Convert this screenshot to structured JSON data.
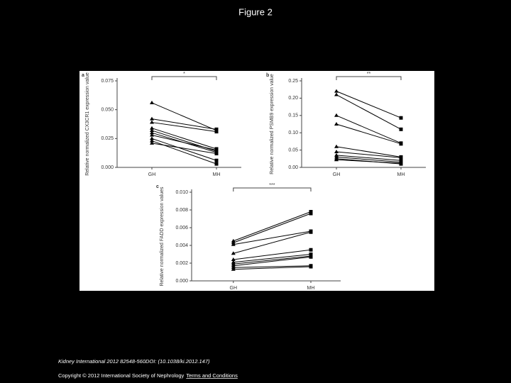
{
  "title": "Figure 2",
  "footer": {
    "citation": "Kidney International 2012 82548-560DOI: (10.1038/ki.2012.147)",
    "copyright": "Copyright © 2012 International Society of Nephrology",
    "link": "Terms and Conditions"
  },
  "chart_data": [
    {
      "type": "line",
      "label": "a",
      "ylabel": "Relative normalized CX3CR1 expression value",
      "annotation": "*",
      "color": "#000000",
      "categories": [
        "GH",
        "MH"
      ],
      "series": [
        {
          "values": [
            0.056,
            0.032
          ]
        },
        {
          "values": [
            0.042,
            0.033
          ]
        },
        {
          "values": [
            0.039,
            0.031
          ]
        },
        {
          "values": [
            0.034,
            0.016
          ]
        },
        {
          "values": [
            0.032,
            0.014
          ]
        },
        {
          "values": [
            0.03,
            0.013
          ]
        },
        {
          "values": [
            0.028,
            0.015
          ]
        },
        {
          "values": [
            0.025,
            0.006
          ]
        },
        {
          "values": [
            0.023,
            0.003
          ]
        },
        {
          "values": [
            0.021,
            0.012
          ]
        }
      ],
      "ylim": [
        0,
        0.075
      ],
      "yticks": [
        {
          "value": 0,
          "label": "0.000"
        },
        {
          "value": 0.025,
          "label": "0.025"
        },
        {
          "value": 0.05,
          "label": "0.050"
        },
        {
          "value": 0.075,
          "label": "0.075"
        }
      ]
    },
    {
      "type": "line",
      "label": "b",
      "ylabel": "Relative normalized PSMB9 expression value",
      "annotation": "**",
      "color": "#000000",
      "categories": [
        "GH",
        "MH"
      ],
      "series": [
        {
          "values": [
            0.22,
            0.143
          ]
        },
        {
          "values": [
            0.21,
            0.11
          ]
        },
        {
          "values": [
            0.15,
            0.07
          ]
        },
        {
          "values": [
            0.125,
            0.068
          ]
        },
        {
          "values": [
            0.06,
            0.03
          ]
        },
        {
          "values": [
            0.045,
            0.028
          ]
        },
        {
          "values": [
            0.035,
            0.02
          ]
        },
        {
          "values": [
            0.03,
            0.015
          ]
        },
        {
          "values": [
            0.025,
            0.01
          ]
        },
        {
          "values": [
            0.022,
            0.012
          ]
        }
      ],
      "ylim": [
        0,
        0.25
      ],
      "yticks": [
        {
          "value": 0,
          "label": "0.00"
        },
        {
          "value": 0.05,
          "label": "0.05"
        },
        {
          "value": 0.1,
          "label": "0.10"
        },
        {
          "value": 0.15,
          "label": "0.15"
        },
        {
          "value": 0.2,
          "label": "0.20"
        },
        {
          "value": 0.25,
          "label": "0.25"
        }
      ]
    },
    {
      "type": "line",
      "label": "c",
      "ylabel": "Relative normalized FADD expression values",
      "annotation": "***",
      "color": "#000000",
      "categories": [
        "GH",
        "MH"
      ],
      "series": [
        {
          "values": [
            0.0045,
            0.0078
          ]
        },
        {
          "values": [
            0.0043,
            0.0076
          ]
        },
        {
          "values": [
            0.0041,
            0.0056
          ]
        },
        {
          "values": [
            0.0031,
            0.0055
          ]
        },
        {
          "values": [
            0.0024,
            0.0035
          ]
        },
        {
          "values": [
            0.0021,
            0.003
          ]
        },
        {
          "values": [
            0.0019,
            0.0028
          ]
        },
        {
          "values": [
            0.0017,
            0.0027
          ]
        },
        {
          "values": [
            0.0015,
            0.0017
          ]
        },
        {
          "values": [
            0.0013,
            0.0016
          ]
        }
      ],
      "ylim": [
        0,
        0.01
      ],
      "yticks": [
        {
          "value": 0,
          "label": "0.000"
        },
        {
          "value": 0.002,
          "label": "0.002"
        },
        {
          "value": 0.004,
          "label": "0.004"
        },
        {
          "value": 0.006,
          "label": "0.006"
        },
        {
          "value": 0.008,
          "label": "0.008"
        },
        {
          "value": 0.01,
          "label": "0.010"
        }
      ]
    }
  ]
}
